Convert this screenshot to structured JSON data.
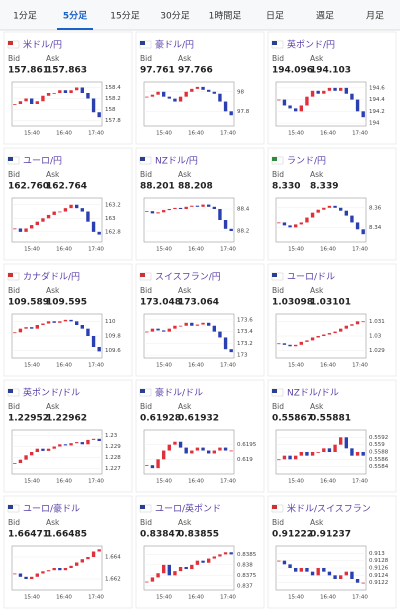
{
  "tabs": [
    "1分足",
    "5分足",
    "15分足",
    "30分足",
    "1時間足",
    "日足",
    "週足",
    "月足"
  ],
  "labels": {
    "bid": "Bid",
    "ask": "Ask"
  },
  "time_labels": [
    "15:40",
    "16:40",
    "17:40"
  ],
  "panels": [
    {
      "name": "米ドル/円",
      "bid": "157.861",
      "ask": "157.863",
      "yticks": [
        "158.4",
        "158.2",
        "158",
        "157.8"
      ],
      "ylim": [
        157.7,
        158.5
      ],
      "closes": [
        158.1,
        158.15,
        158.2,
        158.1,
        158.15,
        158.25,
        158.3,
        158.3,
        158.35,
        158.3,
        158.35,
        158.4,
        158.3,
        158.2,
        157.95,
        157.86
      ]
    },
    {
      "name": "豪ドル/円",
      "bid": "97.761",
      "ask": "97.766",
      "yticks": [
        "98",
        "97.8"
      ],
      "ylim": [
        97.65,
        98.1
      ],
      "closes": [
        97.95,
        97.97,
        98.0,
        97.95,
        97.93,
        97.9,
        97.95,
        98.0,
        98.03,
        98.05,
        98.02,
        98.0,
        97.98,
        97.9,
        97.8,
        97.76
      ]
    },
    {
      "name": "英ポンド/円",
      "bid": "194.096",
      "ask": "194.103",
      "yticks": [
        "194.6",
        "194.4",
        "194.2",
        "194"
      ],
      "ylim": [
        193.95,
        194.7
      ],
      "closes": [
        194.4,
        194.3,
        194.25,
        194.2,
        194.3,
        194.45,
        194.55,
        194.5,
        194.55,
        194.6,
        194.55,
        194.6,
        194.5,
        194.4,
        194.2,
        194.1
      ]
    },
    {
      "name": "ユーロ/円",
      "bid": "162.760",
      "ask": "162.764",
      "yticks": [
        "163.2",
        "163",
        "162.8"
      ],
      "ylim": [
        162.65,
        163.3
      ],
      "closes": [
        162.85,
        162.8,
        162.85,
        162.9,
        162.95,
        163.0,
        163.05,
        163.1,
        163.1,
        163.15,
        163.2,
        163.15,
        163.1,
        162.95,
        162.8,
        162.76
      ]
    },
    {
      "name": "NZドル/円",
      "bid": "88.201",
      "ask": "88.208",
      "yticks": [
        "88.4",
        "88.2"
      ],
      "ylim": [
        88.1,
        88.5
      ],
      "closes": [
        88.38,
        88.36,
        88.37,
        88.39,
        88.4,
        88.41,
        88.4,
        88.42,
        88.43,
        88.42,
        88.44,
        88.42,
        88.4,
        88.3,
        88.22,
        88.2
      ]
    },
    {
      "name": "ランド/円",
      "bid": "8.330",
      "ask": "8.339",
      "yticks": [
        "8.36",
        "8.34"
      ],
      "ylim": [
        8.325,
        8.37
      ],
      "closes": [
        8.345,
        8.342,
        8.34,
        8.343,
        8.345,
        8.35,
        8.355,
        8.358,
        8.36,
        8.362,
        8.36,
        8.357,
        8.352,
        8.345,
        8.338,
        8.333
      ]
    },
    {
      "name": "カナダドル/円",
      "bid": "109.589",
      "ask": "109.595",
      "yticks": [
        "110",
        "109.8",
        "109.6"
      ],
      "ylim": [
        109.5,
        110.1
      ],
      "closes": [
        109.85,
        109.9,
        109.92,
        109.9,
        109.95,
        109.97,
        110.0,
        109.98,
        110.0,
        110.02,
        110.0,
        109.95,
        109.9,
        109.8,
        109.65,
        109.59
      ]
    },
    {
      "name": "スイスフラン/円",
      "bid": "173.048",
      "ask": "173.064",
      "yticks": [
        "173.6",
        "173.4",
        "173.2",
        "173"
      ],
      "ylim": [
        172.95,
        173.7
      ],
      "closes": [
        173.4,
        173.45,
        173.42,
        173.4,
        173.45,
        173.5,
        173.5,
        173.55,
        173.5,
        173.52,
        173.55,
        173.5,
        173.4,
        173.3,
        173.1,
        173.05
      ]
    },
    {
      "name": "ユーロ/ドル",
      "bid": "1.03098",
      "ask": "1.03101",
      "yticks": [
        "1.031",
        "1.03",
        "1.029"
      ],
      "ylim": [
        1.0285,
        1.0315
      ],
      "closes": [
        1.0295,
        1.0294,
        1.0293,
        1.0294,
        1.0296,
        1.0297,
        1.0299,
        1.03,
        1.0301,
        1.0302,
        1.0303,
        1.0305,
        1.0307,
        1.0308,
        1.031,
        1.031
      ]
    },
    {
      "name": "英ポンド/ドル",
      "bid": "1.22952",
      "ask": "1.22962",
      "yticks": [
        "1.23",
        "1.229",
        "1.228",
        "1.227"
      ],
      "ylim": [
        1.2265,
        1.2305
      ],
      "closes": [
        1.2275,
        1.2278,
        1.2282,
        1.2285,
        1.2288,
        1.2286,
        1.2288,
        1.229,
        1.2292,
        1.2291,
        1.2293,
        1.2294,
        1.2292,
        1.2296,
        1.2297,
        1.2295
      ]
    },
    {
      "name": "豪ドル/ドル",
      "bid": "0.61928",
      "ask": "0.61932",
      "yticks": [
        "0.6195",
        "0.619"
      ],
      "ylim": [
        0.6185,
        0.62
      ],
      "closes": [
        0.6188,
        0.6187,
        0.619,
        0.6193,
        0.6195,
        0.6196,
        0.6194,
        0.6192,
        0.6193,
        0.6194,
        0.6193,
        0.6192,
        0.6193,
        0.6194,
        0.6193,
        0.6193
      ]
    },
    {
      "name": "NZドル/ドル",
      "bid": "0.55867",
      "ask": "0.55881",
      "yticks": [
        "0.5592",
        "0.559",
        "0.5588",
        "0.5586",
        "0.5584"
      ],
      "ylim": [
        0.5582,
        0.5594
      ],
      "closes": [
        0.5586,
        0.5587,
        0.5586,
        0.5587,
        0.5588,
        0.5587,
        0.5588,
        0.5588,
        0.5589,
        0.5588,
        0.559,
        0.5592,
        0.5589,
        0.5587,
        0.5588,
        0.5587
      ]
    },
    {
      "name": "ユーロ/豪ドル",
      "bid": "1.66471",
      "ask": "1.66485",
      "yticks": [
        "1.664",
        "1.662"
      ],
      "ylim": [
        1.661,
        1.665
      ],
      "closes": [
        1.6625,
        1.6622,
        1.662,
        1.6622,
        1.6625,
        1.6627,
        1.6628,
        1.663,
        1.6628,
        1.663,
        1.6632,
        1.6635,
        1.6638,
        1.664,
        1.6645,
        1.6647
      ]
    },
    {
      "name": "ユーロ/英ポンド",
      "bid": "0.83847",
      "ask": "0.83855",
      "yticks": [
        "0.8385",
        "0.838",
        "0.8375",
        "0.837"
      ],
      "ylim": [
        0.8368,
        0.8389
      ],
      "closes": [
        0.8372,
        0.8374,
        0.8376,
        0.838,
        0.8375,
        0.8377,
        0.8379,
        0.8378,
        0.838,
        0.8382,
        0.8381,
        0.8383,
        0.8384,
        0.8385,
        0.8386,
        0.8385
      ]
    },
    {
      "name": "米ドル/スイスフラン",
      "bid": "0.91222",
      "ask": "0.91237",
      "yticks": [
        "0.913",
        "0.9128",
        "0.9126",
        "0.9124",
        "0.9122"
      ],
      "ylim": [
        0.912,
        0.9132
      ],
      "closes": [
        0.9128,
        0.9127,
        0.9126,
        0.9125,
        0.9126,
        0.9125,
        0.9124,
        0.9126,
        0.9125,
        0.9124,
        0.9123,
        0.9124,
        0.9125,
        0.9123,
        0.9122,
        0.9122
      ]
    }
  ]
}
